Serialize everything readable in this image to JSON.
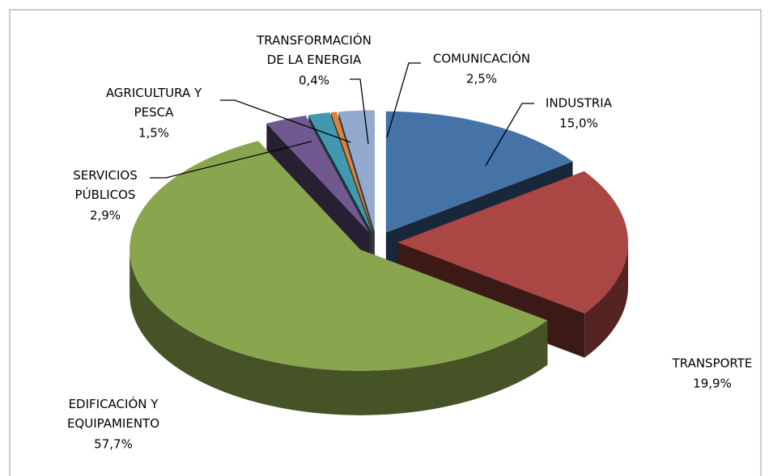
{
  "chart_data": {
    "type": "pie",
    "categories": [
      "INDUSTRIA",
      "TRANSPORTE",
      "EDIFICACIÓN Y\nEQUIPAMIENTO",
      "SERVICIOS\nPÚBLICOS",
      "AGRICULTURA Y\nPESCA",
      "TRANSFORMACIÓN\nDE LA ENERGIA",
      "COMUNICACIÓN"
    ],
    "values": [
      15.0,
      19.9,
      57.7,
      2.9,
      1.5,
      0.4,
      2.5
    ],
    "value_labels": [
      "15,0%",
      "19,9%",
      "57,7%",
      "2,9%",
      "1,5%",
      "0,4%",
      "2,5%"
    ],
    "colors": [
      "#4572a7",
      "#aa4643",
      "#89a54e",
      "#71588f",
      "#4198af",
      "#db843d",
      "#93a9cf"
    ]
  }
}
